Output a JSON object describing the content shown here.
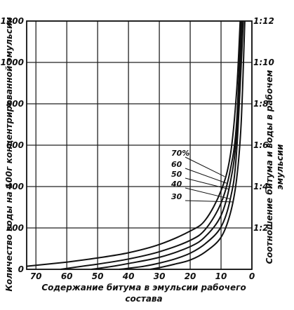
{
  "chart_data": {
    "type": "line",
    "ylabel": "Количество воды на 100г концентрированной эмульсии",
    "xlabel_line1": "Содержание битума в эмульсии рабочего",
    "xlabel_line2": "состава",
    "y2label_line1": "Соотношение битума и воды в рабочем",
    "y2label_line2": "эмульсии",
    "xlim": [
      73,
      0
    ],
    "ylim": [
      0,
      1200
    ],
    "x_ticks": [
      "70",
      "60",
      "50",
      "40",
      "30",
      "20",
      "10",
      "0"
    ],
    "x_tick_values": [
      70,
      60,
      50,
      40,
      30,
      20,
      10,
      0
    ],
    "y_ticks": [
      "0",
      "200",
      "400",
      "600",
      "800",
      "1000",
      "1200"
    ],
    "y_tick_values": [
      0,
      200,
      400,
      600,
      800,
      1000,
      1200
    ],
    "y2_ticks": [
      "1:2",
      "1:4",
      "1:6",
      "1:8",
      "1:10",
      "1:12"
    ],
    "y2_tick_values": [
      200,
      400,
      600,
      800,
      1000,
      1200
    ],
    "grid": true,
    "series": [
      {
        "name": "70%",
        "points": [
          [
            73,
            15
          ],
          [
            60,
            35
          ],
          [
            50,
            55
          ],
          [
            40,
            80
          ],
          [
            30,
            120
          ],
          [
            20,
            185
          ],
          [
            15,
            240
          ],
          [
            10,
            380
          ],
          [
            7,
            550
          ],
          [
            5,
            850
          ],
          [
            3.8,
            1200
          ]
        ]
      },
      {
        "name": "60",
        "points": [
          [
            62,
            0
          ],
          [
            55,
            15
          ],
          [
            50,
            25
          ],
          [
            40,
            50
          ],
          [
            30,
            85
          ],
          [
            20,
            140
          ],
          [
            15,
            195
          ],
          [
            10,
            320
          ],
          [
            7,
            480
          ],
          [
            5,
            700
          ],
          [
            3.5,
            1200
          ]
        ]
      },
      {
        "name": "50",
        "points": [
          [
            52,
            0
          ],
          [
            45,
            15
          ],
          [
            40,
            28
          ],
          [
            30,
            58
          ],
          [
            20,
            110
          ],
          [
            15,
            160
          ],
          [
            10,
            260
          ],
          [
            7,
            420
          ],
          [
            5,
            650
          ],
          [
            3.2,
            1200
          ]
        ]
      },
      {
        "name": "40",
        "points": [
          [
            43,
            0
          ],
          [
            40,
            5
          ],
          [
            35,
            15
          ],
          [
            30,
            30
          ],
          [
            25,
            50
          ],
          [
            20,
            78
          ],
          [
            15,
            125
          ],
          [
            10,
            205
          ],
          [
            7,
            340
          ],
          [
            5,
            560
          ],
          [
            2.8,
            1200
          ]
        ]
      },
      {
        "name": "30",
        "points": [
          [
            33,
            0
          ],
          [
            30,
            8
          ],
          [
            25,
            25
          ],
          [
            20,
            45
          ],
          [
            15,
            85
          ],
          [
            10,
            155
          ],
          [
            7,
            270
          ],
          [
            5,
            430
          ],
          [
            3.5,
            700
          ],
          [
            2.3,
            1200
          ]
        ]
      }
    ]
  }
}
